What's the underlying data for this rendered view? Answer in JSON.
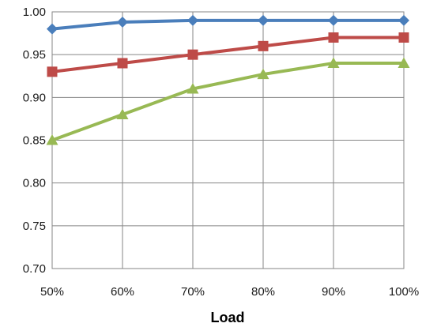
{
  "chart_data": {
    "type": "line",
    "title": "",
    "xlabel": "Load",
    "ylabel": "",
    "categories": [
      "50%",
      "60%",
      "70%",
      "80%",
      "90%",
      "100%"
    ],
    "yticks": [
      "0.70",
      "0.75",
      "0.80",
      "0.85",
      "0.90",
      "0.95",
      "1.00"
    ],
    "ylim": [
      0.7,
      1.0
    ],
    "grid": true,
    "legend": "none",
    "series": [
      {
        "color": "#4a7ebb",
        "marker": "diamond",
        "values": [
          0.98,
          0.988,
          0.99,
          0.99,
          0.99,
          0.99
        ]
      },
      {
        "color": "#be4b48",
        "marker": "square",
        "values": [
          0.93,
          0.94,
          0.95,
          0.96,
          0.97,
          0.97
        ]
      },
      {
        "color": "#98b954",
        "marker": "triangle",
        "values": [
          0.85,
          0.88,
          0.91,
          0.927,
          0.94,
          0.94
        ]
      }
    ]
  }
}
